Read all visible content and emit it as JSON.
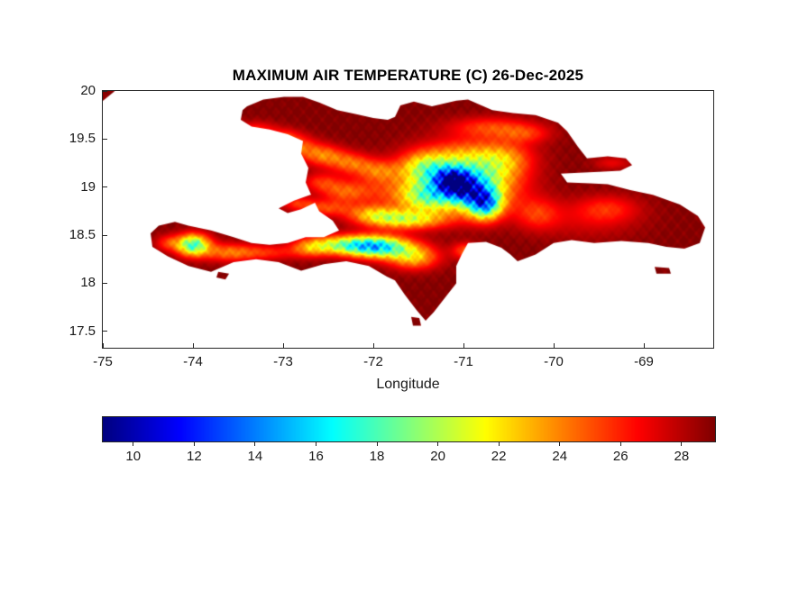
{
  "figure": {
    "title": "MAXIMUM AIR TEMPERATURE (C) 26-Dec-2025",
    "xlabel": "Longitude",
    "background_color": "#ffffff"
  },
  "chart_data": {
    "type": "heatmap",
    "title": "MAXIMUM AIR TEMPERATURE (C) 26-Dec-2025",
    "xlabel": "Longitude",
    "ylabel": "",
    "units": "C",
    "region_shown": "Hispaniola island (Haiti / Dominican Republic) with nearby islets; sea is white",
    "xlim": [
      -75,
      -68.23
    ],
    "ylim": [
      17.33,
      20
    ],
    "xticks": [
      -75,
      -74,
      -73,
      -72,
      -71,
      -70,
      -69
    ],
    "yticks": [
      17.5,
      18,
      18.5,
      19,
      19.5,
      20
    ],
    "grid": false,
    "colormap": "jet",
    "colorbar": {
      "orientation": "horizontal",
      "position": "below",
      "vmin": 9,
      "vmax": 29.1,
      "ticks": [
        10,
        12,
        14,
        16,
        18,
        20,
        22,
        24,
        26,
        28
      ]
    },
    "field": {
      "description": "Hot dark-red coasts and lowlands near 28-29 C; cool blue cores (near 9-13 C) over Cordillera Central; cyan-green bands over Sierra de Bahoruco / Massif de la Selle, Sierra de Neiba and Massif de la Hotte; orange-yellow ridges across northern and southwestern Haiti",
      "base_temp": 29,
      "anomalies": [
        [
          -71.05,
          19.05,
          13,
          0.4,
          0.2
        ],
        [
          -71.12,
          19.07,
          8,
          0.14,
          0.09
        ],
        [
          -70.76,
          18.82,
          11,
          0.13,
          0.11
        ],
        [
          -70.97,
          18.95,
          5,
          0.16,
          0.1
        ],
        [
          -71.45,
          18.88,
          4.5,
          0.2,
          0.1
        ],
        [
          -71.45,
          19.22,
          4,
          0.18,
          0.1
        ],
        [
          -70.55,
          19.28,
          3.5,
          0.22,
          0.12
        ],
        [
          -70.7,
          19.62,
          3.5,
          0.33,
          0.08
        ],
        [
          -70.3,
          19.55,
          2.5,
          0.2,
          0.07
        ],
        [
          -69.4,
          18.78,
          2.5,
          0.25,
          0.1
        ],
        [
          -70.18,
          18.72,
          3,
          0.18,
          0.12
        ],
        [
          -71.65,
          18.66,
          7,
          0.3,
          0.07
        ],
        [
          -72.0,
          18.72,
          4.5,
          0.2,
          0.07
        ],
        [
          -70.98,
          18.34,
          4,
          0.1,
          0.06
        ],
        [
          -71.95,
          18.38,
          12,
          0.25,
          0.08
        ],
        [
          -71.55,
          18.27,
          6,
          0.2,
          0.09
        ],
        [
          -72.35,
          18.4,
          7,
          0.25,
          0.07
        ],
        [
          -72.7,
          18.37,
          4,
          0.15,
          0.07
        ],
        [
          -74.0,
          18.4,
          11,
          0.13,
          0.08
        ],
        [
          -73.62,
          18.32,
          4,
          0.2,
          0.07
        ],
        [
          -74.28,
          18.42,
          3,
          0.1,
          0.06
        ],
        [
          -72.85,
          19.42,
          4,
          0.16,
          0.08
        ],
        [
          -72.55,
          19.33,
          4.5,
          0.16,
          0.08
        ],
        [
          -72.25,
          19.25,
          4,
          0.16,
          0.08
        ],
        [
          -71.95,
          19.17,
          3.5,
          0.16,
          0.08
        ],
        [
          -72.32,
          18.95,
          3.5,
          0.18,
          0.08
        ],
        [
          -72.58,
          19.05,
          3,
          0.15,
          0.07
        ],
        [
          -72.55,
          18.78,
          3.5,
          0.22,
          0.06
        ],
        [
          -73.3,
          19.6,
          3,
          0.16,
          0.06
        ],
        [
          -72.98,
          19.53,
          2.5,
          0.13,
          0.06
        ],
        [
          -73.2,
          18.32,
          3,
          0.25,
          0.06
        ],
        [
          -72.85,
          18.84,
          2.5,
          0.13,
          0.05
        ],
        [
          -69.35,
          19.25,
          2,
          0.15,
          0.05
        ],
        [
          -70.9,
          19.38,
          2,
          0.4,
          0.1
        ],
        [
          -69.6,
          18.65,
          1.5,
          0.4,
          0.15
        ],
        [
          -71.95,
          18.95,
          2,
          0.25,
          0.12
        ]
      ],
      "regions": {
        "hispaniola": [
          [
            -73.4,
            19.84
          ],
          [
            -73.22,
            19.91
          ],
          [
            -72.99,
            19.94
          ],
          [
            -72.78,
            19.94
          ],
          [
            -72.6,
            19.88
          ],
          [
            -72.4,
            19.8
          ],
          [
            -72.2,
            19.76
          ],
          [
            -72.0,
            19.72
          ],
          [
            -71.84,
            19.7
          ],
          [
            -71.76,
            19.73
          ],
          [
            -71.7,
            19.85
          ],
          [
            -71.55,
            19.89
          ],
          [
            -71.35,
            19.84
          ],
          [
            -71.08,
            19.9
          ],
          [
            -70.95,
            19.91
          ],
          [
            -70.68,
            19.8
          ],
          [
            -70.45,
            19.77
          ],
          [
            -70.2,
            19.75
          ],
          [
            -69.95,
            19.67
          ],
          [
            -69.85,
            19.58
          ],
          [
            -69.73,
            19.42
          ],
          [
            -69.63,
            19.3
          ],
          [
            -69.4,
            19.32
          ],
          [
            -69.2,
            19.3
          ],
          [
            -69.13,
            19.23
          ],
          [
            -69.26,
            19.17
          ],
          [
            -69.5,
            19.16
          ],
          [
            -69.72,
            19.15
          ],
          [
            -69.92,
            19.14
          ],
          [
            -69.85,
            19.05
          ],
          [
            -69.6,
            19.04
          ],
          [
            -69.4,
            19.03
          ],
          [
            -69.15,
            18.97
          ],
          [
            -68.9,
            18.92
          ],
          [
            -68.6,
            18.82
          ],
          [
            -68.4,
            18.7
          ],
          [
            -68.32,
            18.58
          ],
          [
            -68.38,
            18.42
          ],
          [
            -68.55,
            18.36
          ],
          [
            -68.75,
            18.38
          ],
          [
            -68.95,
            18.42
          ],
          [
            -69.25,
            18.44
          ],
          [
            -69.55,
            18.42
          ],
          [
            -69.8,
            18.45
          ],
          [
            -70.0,
            18.42
          ],
          [
            -70.2,
            18.3
          ],
          [
            -70.4,
            18.23
          ],
          [
            -70.48,
            18.3
          ],
          [
            -70.58,
            18.37
          ],
          [
            -70.75,
            18.43
          ],
          [
            -70.95,
            18.42
          ],
          [
            -71.02,
            18.3
          ],
          [
            -71.08,
            18.18
          ],
          [
            -71.08,
            18.0
          ],
          [
            -71.18,
            17.88
          ],
          [
            -71.33,
            17.7
          ],
          [
            -71.42,
            17.61
          ],
          [
            -71.52,
            17.72
          ],
          [
            -71.65,
            17.88
          ],
          [
            -71.76,
            18.03
          ],
          [
            -71.85,
            18.07
          ],
          [
            -72.05,
            18.18
          ],
          [
            -72.3,
            18.23
          ],
          [
            -72.55,
            18.2
          ],
          [
            -72.8,
            18.13
          ],
          [
            -73.05,
            18.22
          ],
          [
            -73.3,
            18.25
          ],
          [
            -73.55,
            18.22
          ],
          [
            -73.8,
            18.12
          ],
          [
            -74.05,
            18.18
          ],
          [
            -74.28,
            18.28
          ],
          [
            -74.45,
            18.38
          ],
          [
            -74.47,
            18.52
          ],
          [
            -74.38,
            18.6
          ],
          [
            -74.2,
            18.64
          ],
          [
            -74.05,
            18.6
          ],
          [
            -73.8,
            18.55
          ],
          [
            -73.55,
            18.48
          ],
          [
            -73.35,
            18.42
          ],
          [
            -73.15,
            18.4
          ],
          [
            -72.95,
            18.42
          ],
          [
            -72.75,
            18.48
          ],
          [
            -72.55,
            18.48
          ],
          [
            -72.38,
            18.55
          ],
          [
            -72.45,
            18.65
          ],
          [
            -72.6,
            18.75
          ],
          [
            -72.68,
            18.9
          ],
          [
            -72.75,
            19.05
          ],
          [
            -72.72,
            19.2
          ],
          [
            -72.8,
            19.35
          ],
          [
            -72.78,
            19.48
          ],
          [
            -72.95,
            19.55
          ],
          [
            -73.15,
            19.6
          ],
          [
            -73.35,
            19.63
          ],
          [
            -73.47,
            19.7
          ],
          [
            -73.45,
            19.8
          ]
        ],
        "gonave_island": [
          [
            -73.05,
            18.78
          ],
          [
            -72.88,
            18.86
          ],
          [
            -72.7,
            18.92
          ],
          [
            -72.58,
            18.93
          ],
          [
            -72.62,
            18.85
          ],
          [
            -72.8,
            18.77
          ],
          [
            -72.95,
            18.73
          ]
        ],
        "cuba_corner_fragment": [
          [
            -75.05,
            20.05
          ],
          [
            -74.8,
            20.05
          ],
          [
            -75.05,
            19.86
          ]
        ],
        "saona_island": [
          [
            -68.88,
            18.17
          ],
          [
            -68.72,
            18.16
          ],
          [
            -68.7,
            18.1
          ],
          [
            -68.86,
            18.1
          ]
        ],
        "beata_island": [
          [
            -71.58,
            17.65
          ],
          [
            -71.49,
            17.64
          ],
          [
            -71.47,
            17.56
          ],
          [
            -71.56,
            17.56
          ]
        ],
        "ile_a_vache": [
          [
            -73.72,
            18.12
          ],
          [
            -73.6,
            18.1
          ],
          [
            -73.64,
            18.04
          ],
          [
            -73.74,
            18.06
          ]
        ]
      }
    }
  }
}
